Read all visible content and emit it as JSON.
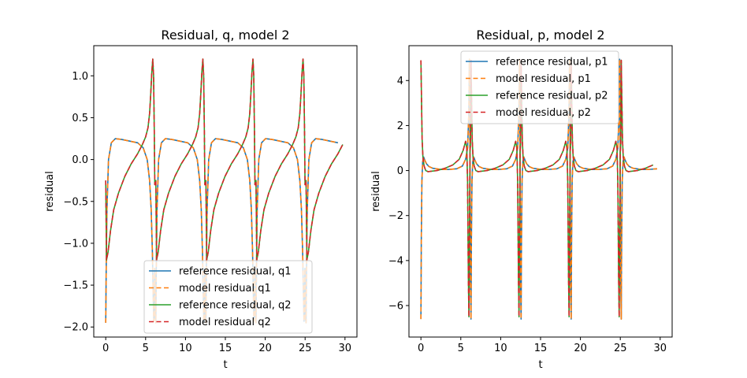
{
  "colors": {
    "c1": "#1f77b4",
    "c2": "#ff7f0e",
    "c3": "#2ca02c",
    "c4": "#d62728"
  },
  "chart_data": [
    {
      "type": "line",
      "title": "Residual, q, model 2",
      "xlabel": "t",
      "ylabel": "residual",
      "xlim": [
        -1.5,
        31.5
      ],
      "ylim": [
        -2.12,
        1.36
      ],
      "xticks": [
        0,
        5,
        10,
        15,
        20,
        25,
        30
      ],
      "xtick_labels": [
        "0",
        "5",
        "10",
        "15",
        "20",
        "25",
        "30"
      ],
      "yticks": [
        -2.0,
        -1.5,
        -1.0,
        -0.5,
        0.0,
        0.5,
        1.0
      ],
      "ytick_labels": [
        "−2.0",
        "−1.5",
        "−1.0",
        "−0.5",
        "0.0",
        "0.5",
        "1.0"
      ],
      "grid": false,
      "legend_position": "lower-center",
      "period": 6.28,
      "series": [
        {
          "name": "reference residual, q1",
          "color": "#1f77b4",
          "dash": "solid",
          "x": [
            0,
            0.06,
            0.15,
            0.35,
            0.7,
            1.2,
            2.0,
            3.0,
            4.0,
            4.7,
            5.2,
            5.5,
            5.7,
            5.85,
            5.95,
            6.02,
            6.08,
            6.14,
            6.2,
            6.28
          ],
          "y": [
            -1.95,
            -1.3,
            -0.6,
            0.0,
            0.2,
            0.25,
            0.24,
            0.22,
            0.2,
            0.14,
            0.0,
            -0.25,
            -0.6,
            -1.1,
            -1.6,
            -1.93,
            -1.75,
            -1.3,
            -1.9,
            -1.95
          ]
        },
        {
          "name": "model residual q1",
          "color": "#ff7f0e",
          "dash": "dashed",
          "x": [
            0,
            0.06,
            0.15,
            0.35,
            0.7,
            1.2,
            2.0,
            3.0,
            4.0,
            4.7,
            5.2,
            5.5,
            5.7,
            5.85,
            5.95,
            6.02,
            6.08,
            6.14,
            6.2,
            6.28
          ],
          "y": [
            -1.95,
            -1.3,
            -0.6,
            0.0,
            0.2,
            0.25,
            0.24,
            0.22,
            0.2,
            0.14,
            0.0,
            -0.25,
            -0.6,
            -1.1,
            -1.6,
            -1.93,
            -1.75,
            -1.3,
            -1.9,
            -1.95
          ]
        },
        {
          "name": "reference residual, q2",
          "color": "#2ca02c",
          "dash": "solid",
          "x": [
            0,
            0.1,
            0.3,
            0.6,
            1.0,
            1.6,
            2.4,
            3.2,
            4.0,
            4.6,
            5.0,
            5.3,
            5.5,
            5.65,
            5.78,
            5.9,
            6.0,
            6.08,
            6.15,
            6.28
          ],
          "y": [
            -0.25,
            -1.2,
            -1.1,
            -0.85,
            -0.6,
            -0.4,
            -0.2,
            -0.05,
            0.07,
            0.18,
            0.27,
            0.38,
            0.55,
            0.8,
            1.05,
            1.2,
            1.0,
            0.4,
            -0.3,
            -0.25
          ]
        },
        {
          "name": "model residual q2",
          "color": "#d62728",
          "dash": "dashed",
          "x": [
            0,
            0.1,
            0.3,
            0.6,
            1.0,
            1.6,
            2.4,
            3.2,
            4.0,
            4.6,
            5.0,
            5.3,
            5.5,
            5.65,
            5.78,
            5.9,
            6.0,
            6.08,
            6.15,
            6.28
          ],
          "y": [
            -0.25,
            -1.2,
            -1.1,
            -0.85,
            -0.6,
            -0.4,
            -0.2,
            -0.05,
            0.07,
            0.18,
            0.27,
            0.38,
            0.55,
            0.8,
            1.05,
            1.2,
            1.0,
            0.4,
            -0.3,
            -0.25
          ]
        }
      ]
    },
    {
      "type": "line",
      "title": "Residual, p, model 2",
      "xlabel": "t",
      "ylabel": "residual",
      "xlim": [
        -1.5,
        31.5
      ],
      "ylim": [
        -7.4,
        5.55
      ],
      "xticks": [
        0,
        5,
        10,
        15,
        20,
        25,
        30
      ],
      "xtick_labels": [
        "0",
        "5",
        "10",
        "15",
        "20",
        "25",
        "30"
      ],
      "yticks": [
        -6,
        -4,
        -2,
        0,
        2,
        4
      ],
      "ytick_labels": [
        "−6",
        "−4",
        "−2",
        "0",
        "2",
        "4"
      ],
      "grid": false,
      "legend_position": "upper-center",
      "period": 6.28,
      "series": [
        {
          "name": "reference residual, p1",
          "color": "#1f77b4",
          "dash": "solid",
          "x": [
            0,
            0.05,
            0.12,
            0.22,
            0.35,
            0.5,
            0.7,
            1.0,
            1.5,
            2.5,
            3.5,
            4.5,
            5.2,
            5.6,
            5.85,
            6.0,
            6.08,
            6.13,
            6.18,
            6.22,
            6.28
          ],
          "y": [
            -6.6,
            -3.0,
            -0.5,
            0.4,
            0.6,
            0.45,
            0.3,
            0.18,
            0.1,
            0.05,
            0.05,
            0.08,
            0.2,
            0.5,
            1.0,
            2.5,
            4.95,
            2.0,
            -2.0,
            -5.0,
            -6.6
          ]
        },
        {
          "name": "model residual, p1",
          "color": "#ff7f0e",
          "dash": "dashed",
          "x": [
            0,
            0.05,
            0.12,
            0.22,
            0.35,
            0.5,
            0.7,
            1.0,
            1.5,
            2.5,
            3.5,
            4.5,
            5.2,
            5.6,
            5.85,
            6.0,
            6.08,
            6.13,
            6.18,
            6.22,
            6.28
          ],
          "y": [
            -6.6,
            -3.0,
            -0.5,
            0.4,
            0.6,
            0.45,
            0.3,
            0.18,
            0.1,
            0.05,
            0.05,
            0.08,
            0.2,
            0.5,
            1.0,
            2.5,
            4.95,
            2.0,
            -2.0,
            -5.0,
            -6.6
          ]
        },
        {
          "name": "reference residual, p2",
          "color": "#2ca02c",
          "dash": "solid",
          "x": [
            0,
            0.08,
            0.15,
            0.25,
            0.4,
            0.6,
            0.9,
            1.3,
            2.0,
            3.0,
            4.0,
            4.8,
            5.3,
            5.6,
            5.75,
            5.85,
            5.95,
            6.02,
            6.08,
            6.15,
            6.22,
            6.28
          ],
          "y": [
            4.9,
            3.0,
            1.4,
            0.6,
            0.2,
            0.0,
            -0.05,
            -0.03,
            0.0,
            0.1,
            0.25,
            0.5,
            0.9,
            1.3,
            1.0,
            -0.5,
            -4.8,
            -6.5,
            -3.0,
            0.8,
            1.2,
            4.9
          ]
        },
        {
          "name": "model residual, p2",
          "color": "#d62728",
          "dash": "dashed",
          "x": [
            0,
            0.08,
            0.15,
            0.25,
            0.4,
            0.6,
            0.9,
            1.3,
            2.0,
            3.0,
            4.0,
            4.8,
            5.3,
            5.6,
            5.75,
            5.85,
            5.95,
            6.02,
            6.08,
            6.15,
            6.22,
            6.28
          ],
          "y": [
            4.9,
            3.0,
            1.4,
            0.6,
            0.2,
            0.0,
            -0.05,
            -0.03,
            0.0,
            0.1,
            0.25,
            0.5,
            0.9,
            1.3,
            1.0,
            -0.5,
            -4.8,
            -6.5,
            -3.0,
            0.8,
            1.2,
            4.9
          ]
        }
      ]
    }
  ]
}
